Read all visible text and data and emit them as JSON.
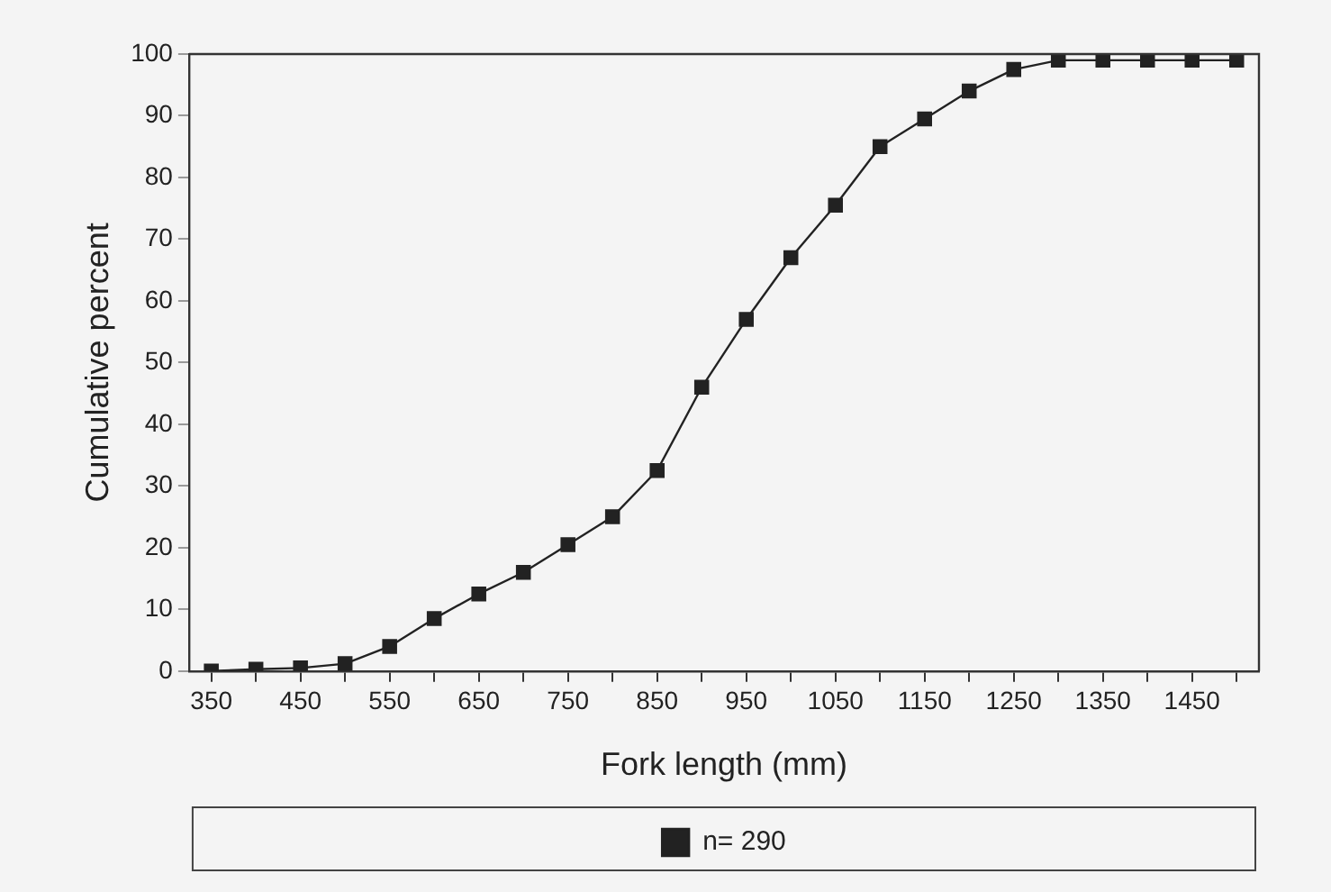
{
  "chart_data": {
    "type": "line",
    "xlabel": "Fork length (mm)",
    "ylabel": "Cumulative percent",
    "x": [
      350,
      400,
      450,
      500,
      550,
      600,
      650,
      700,
      750,
      800,
      850,
      900,
      950,
      1000,
      1050,
      1100,
      1150,
      1200,
      1250,
      1300,
      1350,
      1400,
      1450,
      1500
    ],
    "series": [
      {
        "name": "n= 290",
        "color": "#222222",
        "values": [
          0,
          0.3,
          0.5,
          1.2,
          4,
          8.5,
          12.5,
          16,
          20.5,
          25,
          32.5,
          46,
          57,
          67,
          75.5,
          85,
          89.5,
          94,
          97.5,
          99,
          99,
          99,
          99,
          99
        ]
      }
    ],
    "xlim": [
      325,
      1525
    ],
    "xticks": [
      350,
      {
        "value": 400,
        "label": null
      },
      450,
      {
        "value": 500,
        "label": null
      },
      550,
      {
        "value": 600,
        "label": null
      },
      650,
      {
        "value": 700,
        "label": null
      },
      750,
      {
        "value": 800,
        "label": null
      },
      850,
      {
        "value": 900,
        "label": null
      },
      950,
      {
        "value": 1000,
        "label": null
      },
      1050,
      {
        "value": 1100,
        "label": null
      },
      1150,
      {
        "value": 1200,
        "label": null
      },
      1250,
      {
        "value": 1300,
        "label": null
      },
      1350,
      {
        "value": 1400,
        "label": null
      },
      1450,
      {
        "value": 1500,
        "label": null
      }
    ],
    "ylim": [
      0,
      100
    ],
    "yticks": [
      0,
      10,
      20,
      30,
      40,
      50,
      60,
      70,
      80,
      90,
      100
    ],
    "grid": false,
    "legend": "bottom",
    "marker": "square",
    "line_style": "solid"
  }
}
